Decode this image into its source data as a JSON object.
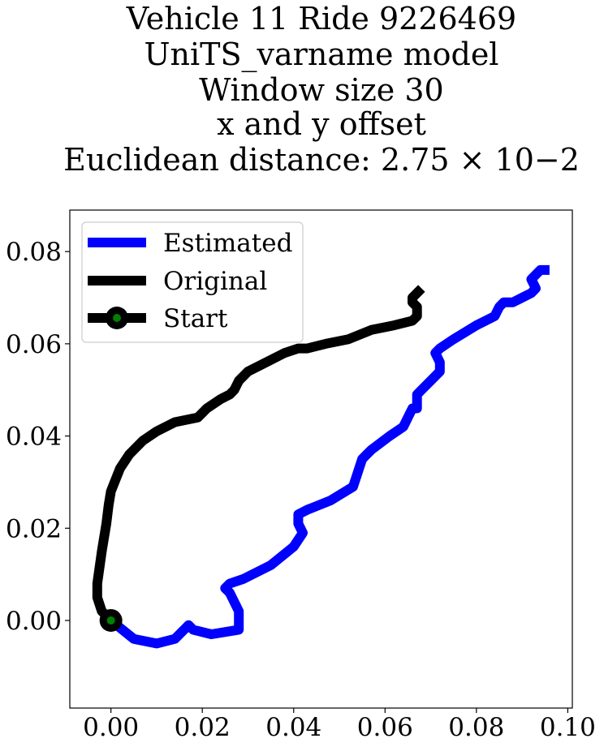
{
  "chart_data": {
    "type": "line",
    "title_lines": [
      "Vehicle 11 Ride 9226469",
      "UniTS_varname model",
      "Window size 30",
      "x and y offset",
      "Euclidean distance: 2.75 × 10−2"
    ],
    "xlabel": "",
    "ylabel": "",
    "xlim": [
      -0.009,
      0.101
    ],
    "ylim": [
      -0.019,
      0.089
    ],
    "x_ticks": [
      0.0,
      0.02,
      0.04,
      0.06,
      0.08,
      0.1
    ],
    "x_tick_labels": [
      "0.00",
      "0.02",
      "0.04",
      "0.06",
      "0.08",
      "0.10"
    ],
    "y_ticks": [
      0.0,
      0.02,
      0.04,
      0.06,
      0.08
    ],
    "y_tick_labels": [
      "0.00",
      "0.02",
      "0.04",
      "0.06",
      "0.08"
    ],
    "grid": false,
    "legend_position": "top-left",
    "series": [
      {
        "name": "Estimated",
        "color": "#0000ff",
        "x": [
          0.0,
          0.005,
          0.01,
          0.014,
          0.016,
          0.017,
          0.018,
          0.022,
          0.028,
          0.028,
          0.026,
          0.025,
          0.026,
          0.029,
          0.035,
          0.04,
          0.042,
          0.041,
          0.041,
          0.043,
          0.048,
          0.053,
          0.054,
          0.055,
          0.057,
          0.061,
          0.064,
          0.065,
          0.066,
          0.067,
          0.067,
          0.068,
          0.07,
          0.072,
          0.072,
          0.071,
          0.072,
          0.075,
          0.08,
          0.084,
          0.085,
          0.086,
          0.088,
          0.09,
          0.092,
          0.093,
          0.092,
          0.094,
          0.096
        ],
        "y": [
          0.0,
          -0.004,
          -0.005,
          -0.004,
          -0.002,
          -0.001,
          -0.002,
          -0.003,
          -0.002,
          0.002,
          0.006,
          0.007,
          0.008,
          0.009,
          0.012,
          0.016,
          0.019,
          0.021,
          0.023,
          0.024,
          0.026,
          0.029,
          0.032,
          0.035,
          0.037,
          0.04,
          0.042,
          0.044,
          0.046,
          0.046,
          0.049,
          0.05,
          0.052,
          0.054,
          0.056,
          0.058,
          0.059,
          0.061,
          0.064,
          0.066,
          0.068,
          0.069,
          0.069,
          0.07,
          0.071,
          0.072,
          0.074,
          0.076,
          0.076
        ]
      },
      {
        "name": "Original",
        "color": "#000000",
        "x": [
          0.0,
          -0.002,
          -0.003,
          -0.003,
          -0.002,
          -0.001,
          -0.0005,
          0.0,
          0.002,
          0.004,
          0.007,
          0.01,
          0.014,
          0.019,
          0.021,
          0.024,
          0.026,
          0.027,
          0.028,
          0.03,
          0.034,
          0.038,
          0.041,
          0.043,
          0.047,
          0.052,
          0.057,
          0.062,
          0.066,
          0.067,
          0.067,
          0.066,
          0.066,
          0.067,
          0.068
        ],
        "y": [
          0.0,
          0.002,
          0.005,
          0.008,
          0.015,
          0.021,
          0.025,
          0.028,
          0.033,
          0.036,
          0.039,
          0.041,
          0.043,
          0.044,
          0.046,
          0.048,
          0.049,
          0.05,
          0.052,
          0.054,
          0.056,
          0.058,
          0.059,
          0.059,
          0.06,
          0.061,
          0.063,
          0.064,
          0.065,
          0.066,
          0.068,
          0.069,
          0.07,
          0.071,
          0.072
        ]
      }
    ],
    "start": {
      "name": "Start",
      "x": 0.0,
      "y": 0.0,
      "marker_color": "#008000",
      "edge_color": "#000000"
    },
    "legend": [
      "Estimated",
      "Original",
      "Start"
    ]
  }
}
